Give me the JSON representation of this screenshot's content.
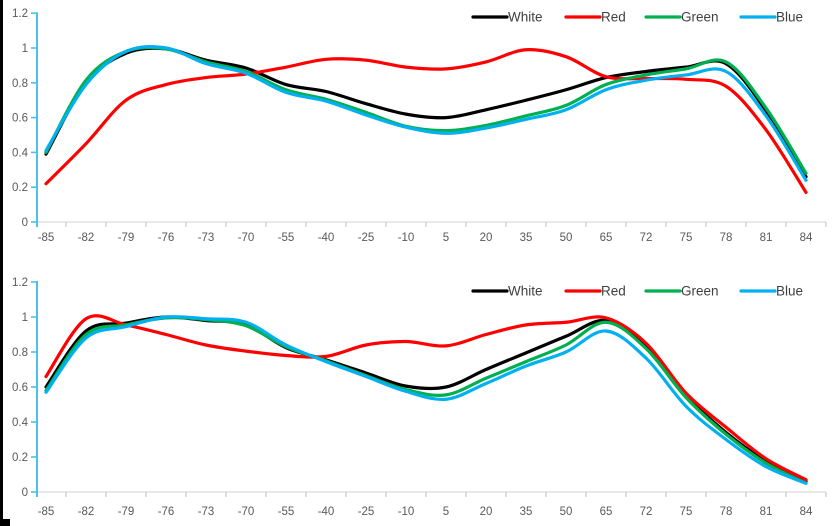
{
  "window": {
    "background": "#FFFFFF",
    "left_border_color": "#000000"
  },
  "colors": {
    "y_axis_line": "#49C1E8",
    "x_axis_line": "#D9D9D9",
    "tick_mark": "#BFBFBF",
    "tick_label": "#595959",
    "legend_text": "#404040"
  },
  "chart_data": [
    {
      "type": "line",
      "smooth": true,
      "title": "",
      "xlabel": "",
      "ylabel": "",
      "grid": false,
      "legend_position": "top-right",
      "ylim": [
        0,
        1.2
      ],
      "yticks": [
        "0",
        "0.2",
        "0.4",
        "0.6",
        "0.8",
        "1",
        "1.2"
      ],
      "categories": [
        "-85",
        "-82",
        "-79",
        "-76",
        "-73",
        "-70",
        "-55",
        "-40",
        "-25",
        "-10",
        "5",
        "20",
        "35",
        "50",
        "65",
        "72",
        "75",
        "78",
        "81",
        "84"
      ],
      "series": [
        {
          "name": "White",
          "color": "#000000",
          "values": [
            0.39,
            0.8,
            0.97,
            0.995,
            0.93,
            0.885,
            0.79,
            0.75,
            0.68,
            0.62,
            0.6,
            0.645,
            0.7,
            0.76,
            0.83,
            0.865,
            0.89,
            0.91,
            0.64,
            0.26
          ]
        },
        {
          "name": "Red",
          "color": "#FF0000",
          "values": [
            0.22,
            0.45,
            0.7,
            0.79,
            0.83,
            0.85,
            0.89,
            0.935,
            0.93,
            0.89,
            0.88,
            0.92,
            0.99,
            0.95,
            0.835,
            0.825,
            0.82,
            0.78,
            0.53,
            0.17
          ]
        },
        {
          "name": "Green",
          "color": "#00B050",
          "values": [
            0.4,
            0.815,
            0.98,
            0.995,
            0.92,
            0.865,
            0.76,
            0.705,
            0.63,
            0.55,
            0.525,
            0.555,
            0.61,
            0.67,
            0.79,
            0.845,
            0.88,
            0.92,
            0.655,
            0.28
          ]
        },
        {
          "name": "Blue",
          "color": "#00B0F0",
          "values": [
            0.41,
            0.79,
            0.98,
            1.0,
            0.91,
            0.855,
            0.745,
            0.695,
            0.615,
            0.545,
            0.51,
            0.54,
            0.59,
            0.645,
            0.76,
            0.815,
            0.845,
            0.865,
            0.61,
            0.24
          ]
        }
      ]
    },
    {
      "type": "line",
      "smooth": true,
      "title": "",
      "xlabel": "",
      "ylabel": "",
      "grid": false,
      "legend_position": "top-right",
      "ylim": [
        0,
        1.2
      ],
      "yticks": [
        "0",
        "0.2",
        "0.4",
        "0.6",
        "0.8",
        "1",
        "1.2"
      ],
      "categories": [
        "-85",
        "-82",
        "-79",
        "-76",
        "-73",
        "-70",
        "-55",
        "-40",
        "-25",
        "-10",
        "5",
        "20",
        "35",
        "50",
        "65",
        "72",
        "75",
        "78",
        "81",
        "84"
      ],
      "series": [
        {
          "name": "White",
          "color": "#000000",
          "values": [
            0.6,
            0.92,
            0.965,
            1.0,
            0.98,
            0.955,
            0.825,
            0.755,
            0.68,
            0.605,
            0.6,
            0.7,
            0.795,
            0.89,
            0.98,
            0.835,
            0.55,
            0.34,
            0.175,
            0.06
          ]
        },
        {
          "name": "Red",
          "color": "#FF0000",
          "values": [
            0.66,
            0.99,
            0.955,
            0.9,
            0.84,
            0.805,
            0.78,
            0.775,
            0.84,
            0.86,
            0.835,
            0.9,
            0.955,
            0.97,
            0.995,
            0.85,
            0.565,
            0.37,
            0.19,
            0.07
          ]
        },
        {
          "name": "Green",
          "color": "#00B050",
          "values": [
            0.58,
            0.9,
            0.955,
            0.995,
            0.985,
            0.95,
            0.83,
            0.75,
            0.665,
            0.585,
            0.555,
            0.65,
            0.745,
            0.84,
            0.97,
            0.82,
            0.54,
            0.33,
            0.165,
            0.05
          ]
        },
        {
          "name": "Blue",
          "color": "#00B0F0",
          "values": [
            0.57,
            0.88,
            0.945,
            1.0,
            0.99,
            0.97,
            0.84,
            0.745,
            0.66,
            0.575,
            0.53,
            0.62,
            0.72,
            0.8,
            0.92,
            0.765,
            0.49,
            0.3,
            0.145,
            0.05
          ]
        }
      ]
    }
  ]
}
